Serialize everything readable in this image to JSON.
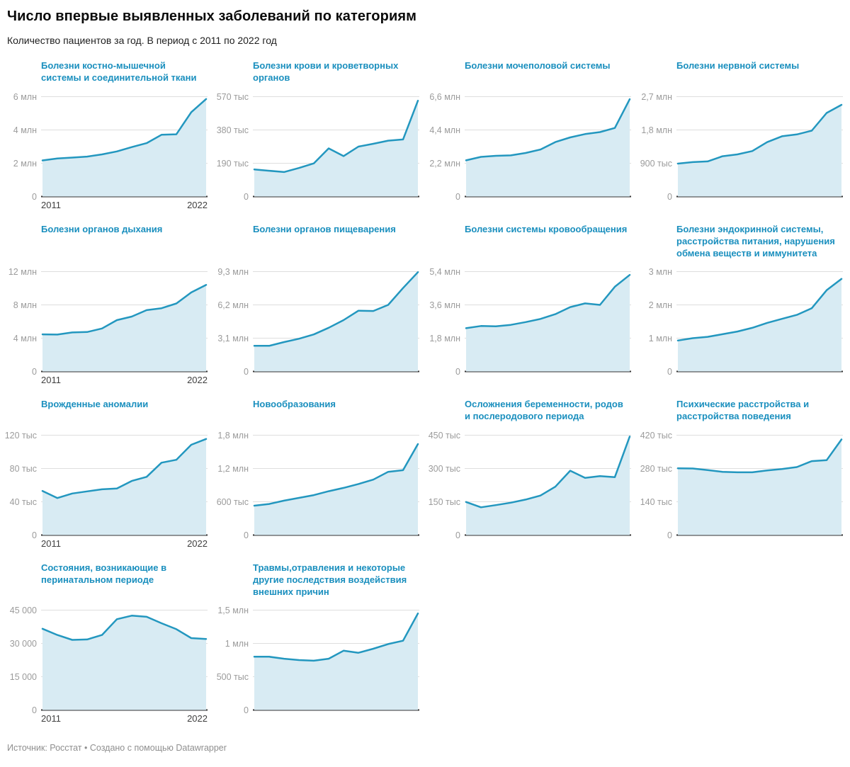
{
  "header": {
    "title": "Число впервые выявленных заболеваний по категориям",
    "subtitle": "Количество пациентов за год. В период с 2011 по 2022 год"
  },
  "footer": {
    "text": "Источник: Росстат • Создано с помощью Datawrapper"
  },
  "colors": {
    "line": "#2397bf",
    "fill": "#d8ebf3",
    "chart_title": "#1a8fbe",
    "tick_label": "#9b9b9b",
    "gridline": "#dedede",
    "baseline": "#333333"
  },
  "x_axis": {
    "start_label": "2011",
    "end_label": "2022"
  },
  "layout_rows": [
    {
      "charts": [
        0,
        1,
        2,
        3
      ],
      "title_h": 36
    },
    {
      "charts": [
        4,
        5,
        6,
        7
      ],
      "title_h": 52
    },
    {
      "charts": [
        8,
        9,
        10,
        11
      ],
      "title_h": 36
    },
    {
      "charts": [
        12,
        13
      ],
      "title_h": 52
    }
  ],
  "chart_data": [
    {
      "type": "area",
      "title": "Болезни костно-мышечной системы и соединительной ткани",
      "x": [
        2011,
        2012,
        2013,
        2014,
        2015,
        2016,
        2017,
        2018,
        2019,
        2020,
        2021,
        2022
      ],
      "values": [
        2.17,
        2.29,
        2.34,
        2.4,
        2.53,
        2.71,
        2.97,
        3.21,
        3.71,
        3.74,
        5.07,
        5.86
      ],
      "unit": "млн",
      "ymax": 6,
      "yticks": [
        {
          "v": 6,
          "label": "6 млн"
        },
        {
          "v": 4,
          "label": "4 млн"
        },
        {
          "v": 2,
          "label": "2 млн"
        },
        {
          "v": 0,
          "label": "0"
        }
      ],
      "show_x_labels": true
    },
    {
      "type": "area",
      "title": "Болезни крови и кроветворных органов",
      "x": [
        2011,
        2012,
        2013,
        2014,
        2015,
        2016,
        2017,
        2018,
        2019,
        2020,
        2021,
        2022
      ],
      "values": [
        155,
        147,
        140,
        163,
        189,
        275,
        231,
        285,
        301,
        319,
        326,
        547
      ],
      "unit": "тыс",
      "ymax": 570,
      "yticks": [
        {
          "v": 570,
          "label": "570 тыс"
        },
        {
          "v": 380,
          "label": "380 тыс"
        },
        {
          "v": 190,
          "label": "190 тыс"
        },
        {
          "v": 0,
          "label": "0"
        }
      ],
      "show_x_labels": false
    },
    {
      "type": "area",
      "title": "Болезни мочеполовой системы",
      "x": [
        2011,
        2012,
        2013,
        2014,
        2015,
        2016,
        2017,
        2018,
        2019,
        2020,
        2021,
        2022
      ],
      "values": [
        2.39,
        2.62,
        2.69,
        2.72,
        2.88,
        3.11,
        3.6,
        3.91,
        4.13,
        4.26,
        4.53,
        6.43
      ],
      "unit": "млн",
      "ymax": 6.6,
      "yticks": [
        {
          "v": 6.6,
          "label": "6,6 млн"
        },
        {
          "v": 4.4,
          "label": "4,4 млн"
        },
        {
          "v": 2.2,
          "label": "2,2 млн"
        },
        {
          "v": 0,
          "label": "0"
        }
      ],
      "show_x_labels": false
    },
    {
      "type": "area",
      "title": "Болезни нервной системы",
      "x": [
        2011,
        2012,
        2013,
        2014,
        2015,
        2016,
        2017,
        2018,
        2019,
        2020,
        2021,
        2022
      ],
      "values": [
        0.89,
        0.93,
        0.95,
        1.09,
        1.14,
        1.23,
        1.47,
        1.63,
        1.68,
        1.78,
        2.26,
        2.48
      ],
      "unit": "млн",
      "ymax": 2.7,
      "yticks": [
        {
          "v": 2.7,
          "label": "2,7 млн"
        },
        {
          "v": 1.8,
          "label": "1,8 млн"
        },
        {
          "v": 0.9,
          "label": "900 тыс"
        },
        {
          "v": 0,
          "label": "0"
        }
      ],
      "show_x_labels": false
    },
    {
      "type": "area",
      "title": "Болезни органов дыхания",
      "x": [
        2011,
        2012,
        2013,
        2014,
        2015,
        2016,
        2017,
        2018,
        2019,
        2020,
        2021,
        2022
      ],
      "values": [
        4.46,
        4.43,
        4.69,
        4.74,
        5.17,
        6.17,
        6.6,
        7.37,
        7.6,
        8.17,
        9.5,
        10.4
      ],
      "unit": "млн",
      "ymax": 12,
      "yticks": [
        {
          "v": 12,
          "label": "12 млн"
        },
        {
          "v": 8,
          "label": "8 млн"
        },
        {
          "v": 4,
          "label": "4 млн"
        },
        {
          "v": 0,
          "label": "0"
        }
      ],
      "show_x_labels": true
    },
    {
      "type": "area",
      "title": "Болезни органов пищеварения",
      "x": [
        2011,
        2012,
        2013,
        2014,
        2015,
        2016,
        2017,
        2018,
        2019,
        2020,
        2021,
        2022
      ],
      "values": [
        2.39,
        2.39,
        2.74,
        3.05,
        3.45,
        4.07,
        4.78,
        5.66,
        5.63,
        6.2,
        7.77,
        9.25
      ],
      "unit": "млн",
      "ymax": 9.3,
      "yticks": [
        {
          "v": 9.3,
          "label": "9,3 млн"
        },
        {
          "v": 6.2,
          "label": "6,2 млн"
        },
        {
          "v": 3.1,
          "label": "3,1 млн"
        },
        {
          "v": 0,
          "label": "0"
        }
      ],
      "show_x_labels": false
    },
    {
      "type": "area",
      "title": "Болезни системы кровообращения",
      "x": [
        2011,
        2012,
        2013,
        2014,
        2015,
        2016,
        2017,
        2018,
        2019,
        2020,
        2021,
        2022
      ],
      "values": [
        2.34,
        2.46,
        2.44,
        2.52,
        2.67,
        2.84,
        3.1,
        3.48,
        3.68,
        3.6,
        4.58,
        5.22
      ],
      "unit": "млн",
      "ymax": 5.4,
      "yticks": [
        {
          "v": 5.4,
          "label": "5,4 млн"
        },
        {
          "v": 3.6,
          "label": "3,6 млн"
        },
        {
          "v": 1.8,
          "label": "1,8 млн"
        },
        {
          "v": 0,
          "label": "0"
        }
      ],
      "show_x_labels": false
    },
    {
      "type": "area",
      "title": "Болезни эндокринной системы, расстройства питания, нарушения обмена веществ и иммунитета",
      "x": [
        2011,
        2012,
        2013,
        2014,
        2015,
        2016,
        2017,
        2018,
        2019,
        2020,
        2021,
        2022
      ],
      "values": [
        0.93,
        1.0,
        1.04,
        1.12,
        1.2,
        1.31,
        1.46,
        1.58,
        1.7,
        1.9,
        2.44,
        2.78
      ],
      "unit": "млн",
      "ymax": 3,
      "yticks": [
        {
          "v": 3,
          "label": "3 млн"
        },
        {
          "v": 2,
          "label": "2 млн"
        },
        {
          "v": 1,
          "label": "1 млн"
        },
        {
          "v": 0,
          "label": "0"
        }
      ],
      "show_x_labels": false
    },
    {
      "type": "area",
      "title": "Врожденные аномалии",
      "x": [
        2011,
        2012,
        2013,
        2014,
        2015,
        2016,
        2017,
        2018,
        2019,
        2020,
        2021,
        2022
      ],
      "values": [
        53,
        44.5,
        50,
        52.5,
        55,
        56,
        65,
        70,
        87,
        90.5,
        108.5,
        115.5
      ],
      "unit": "тыс",
      "ymax": 120,
      "yticks": [
        {
          "v": 120,
          "label": "120 тыс"
        },
        {
          "v": 80,
          "label": "80 тыс"
        },
        {
          "v": 40,
          "label": "40 тыс"
        },
        {
          "v": 0,
          "label": "0"
        }
      ],
      "show_x_labels": true
    },
    {
      "type": "area",
      "title": "Новообразования",
      "x": [
        2011,
        2012,
        2013,
        2014,
        2015,
        2016,
        2017,
        2018,
        2019,
        2020,
        2021,
        2022
      ],
      "values": [
        0.53,
        0.56,
        0.62,
        0.67,
        0.72,
        0.79,
        0.85,
        0.92,
        1.0,
        1.14,
        1.17,
        1.64
      ],
      "unit": "млн",
      "ymax": 1.8,
      "yticks": [
        {
          "v": 1.8,
          "label": "1,8 млн"
        },
        {
          "v": 1.2,
          "label": "1,2 млн"
        },
        {
          "v": 0.6,
          "label": "600 тыс"
        },
        {
          "v": 0,
          "label": "0"
        }
      ],
      "show_x_labels": false
    },
    {
      "type": "area",
      "title": "Осложнения беременности, родов и послеродового периода",
      "x": [
        2011,
        2012,
        2013,
        2014,
        2015,
        2016,
        2017,
        2018,
        2019,
        2020,
        2021,
        2022
      ],
      "values": [
        149,
        125,
        135,
        146,
        160,
        178,
        218,
        290,
        258,
        266,
        261,
        444
      ],
      "unit": "тыс",
      "ymax": 450,
      "yticks": [
        {
          "v": 450,
          "label": "450 тыс"
        },
        {
          "v": 300,
          "label": "300 тыс"
        },
        {
          "v": 150,
          "label": "150 тыс"
        },
        {
          "v": 0,
          "label": "0"
        }
      ],
      "show_x_labels": false
    },
    {
      "type": "area",
      "title": "Психические расстройства и расстройства поведения",
      "x": [
        2011,
        2012,
        2013,
        2014,
        2015,
        2016,
        2017,
        2018,
        2019,
        2020,
        2021,
        2022
      ],
      "values": [
        281,
        280,
        273,
        266,
        264,
        264,
        272,
        278,
        286,
        311,
        315,
        402
      ],
      "unit": "тыс",
      "ymax": 420,
      "yticks": [
        {
          "v": 420,
          "label": "420 тыс"
        },
        {
          "v": 280,
          "label": "280 тыс"
        },
        {
          "v": 140,
          "label": "140 тыс"
        },
        {
          "v": 0,
          "label": "0"
        }
      ],
      "show_x_labels": false
    },
    {
      "type": "area",
      "title": "Состояния, возникающие в перинатальном периоде",
      "x": [
        2011,
        2012,
        2013,
        2014,
        2015,
        2016,
        2017,
        2018,
        2019,
        2020,
        2021,
        2022
      ],
      "values": [
        36600,
        33800,
        31600,
        31800,
        33800,
        40900,
        42500,
        42000,
        39100,
        36400,
        32400,
        32000
      ],
      "unit": "",
      "ymax": 45000,
      "yticks": [
        {
          "v": 45000,
          "label": "45 000"
        },
        {
          "v": 30000,
          "label": "30 000"
        },
        {
          "v": 15000,
          "label": "15 000"
        },
        {
          "v": 0,
          "label": "0"
        }
      ],
      "show_x_labels": true
    },
    {
      "type": "area",
      "title": "Травмы,отравления и некоторые другие последствия воздействия внешних причин",
      "x": [
        2011,
        2012,
        2013,
        2014,
        2015,
        2016,
        2017,
        2018,
        2019,
        2020,
        2021,
        2022
      ],
      "values": [
        0.8,
        0.8,
        0.77,
        0.75,
        0.74,
        0.77,
        0.89,
        0.86,
        0.92,
        0.99,
        1.04,
        1.45
      ],
      "unit": "млн",
      "ymax": 1.5,
      "yticks": [
        {
          "v": 1.5,
          "label": "1,5 млн"
        },
        {
          "v": 1,
          "label": "1 млн"
        },
        {
          "v": 0.5,
          "label": "500 тыс"
        },
        {
          "v": 0,
          "label": "0"
        }
      ],
      "show_x_labels": false
    }
  ]
}
